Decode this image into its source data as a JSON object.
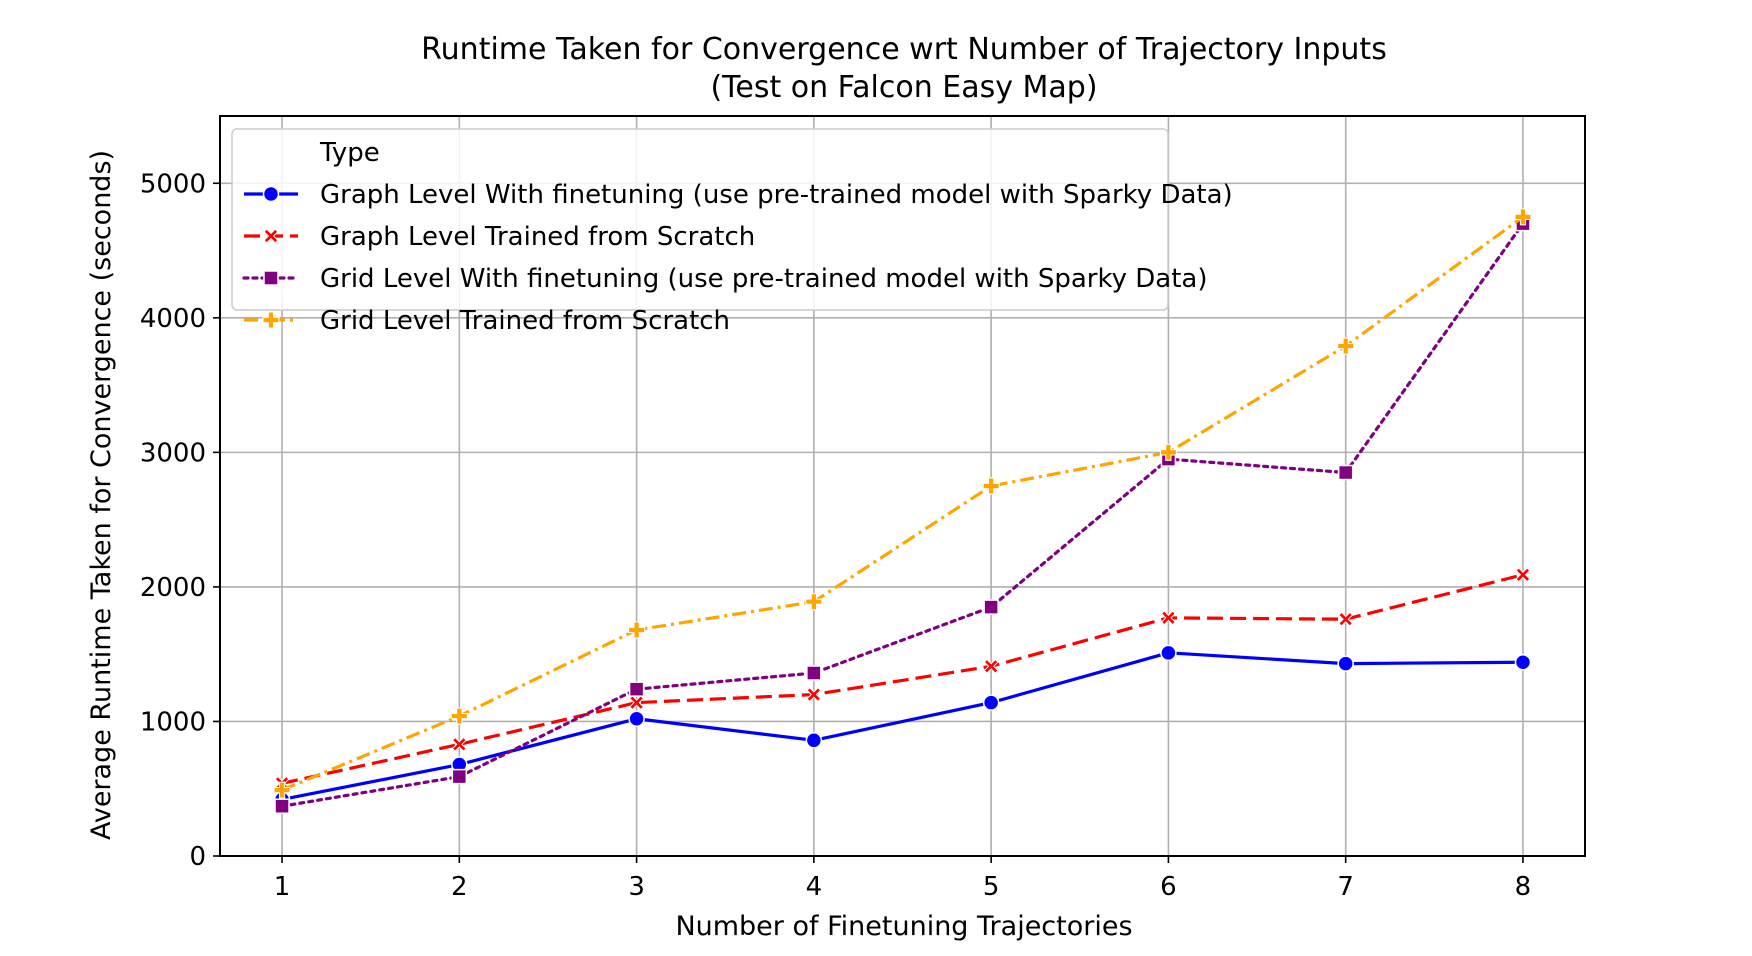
{
  "chart_data": {
    "type": "line",
    "title": "Runtime Taken for Convergence wrt Number of Trajectory Inputs",
    "subtitle": "(Test on Falcon Easy Map)",
    "xlabel": "Number of Finetuning Trajectories",
    "ylabel": "Average Runtime Taken for Convergence (seconds)",
    "x": [
      1,
      2,
      3,
      4,
      5,
      6,
      7,
      8
    ],
    "xticks": [
      "1",
      "2",
      "3",
      "4",
      "5",
      "6",
      "7",
      "8"
    ],
    "yticks": [
      "0",
      "1000",
      "2000",
      "3000",
      "4000",
      "5000"
    ],
    "xlim": [
      0.65,
      8.35
    ],
    "ylim": [
      0,
      5500
    ],
    "grid": true,
    "legend_title": "Type",
    "legend_position": "top-left",
    "series": [
      {
        "name": "Graph Level With finetuning (use pre-trained model with Sparky Data)",
        "color": "#0000ff",
        "dash": "solid",
        "marker": "circle",
        "values": [
          420,
          680,
          1020,
          860,
          1140,
          1510,
          1430,
          1440
        ]
      },
      {
        "name": "Graph Level Trained from Scratch",
        "color": "#ff0000",
        "dash": "dashed",
        "marker": "x",
        "values": [
          540,
          830,
          1140,
          1200,
          1410,
          1770,
          1760,
          2090
        ]
      },
      {
        "name": "Grid Level With finetuning (use pre-trained model with Sparky Data)",
        "color": "#800080",
        "dash": "dotted",
        "marker": "square",
        "values": [
          370,
          590,
          1240,
          1360,
          1850,
          2950,
          2850,
          4700
        ]
      },
      {
        "name": "Grid Level Trained from Scratch",
        "color": "#ffa500",
        "dash": "dashdot",
        "marker": "plus",
        "values": [
          490,
          1040,
          1680,
          1890,
          2750,
          3000,
          3790,
          4750
        ]
      }
    ]
  }
}
